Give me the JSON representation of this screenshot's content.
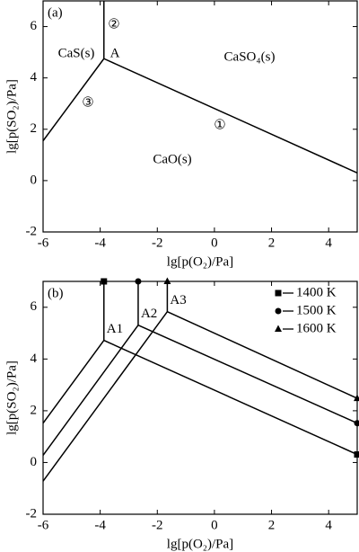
{
  "chart_data": [
    {
      "type": "line",
      "title": "(a)",
      "xlabel": "lg[p(O₂)/Pa]",
      "ylabel": "lg[p(SO₂)/Pa]",
      "xlim": [
        -6,
        5
      ],
      "ylim": [
        -2,
        7
      ],
      "xticks": [
        -6,
        -4,
        -2,
        0,
        2,
        4
      ],
      "yticks": [
        -2,
        0,
        2,
        4,
        6
      ],
      "color": "#000000",
      "annotations": [
        "CaS(s)",
        "A",
        "CaSO₄(s)",
        "CaO(s)"
      ],
      "series": [
        {
          "label": "③",
          "x": [
            -6,
            -3.87
          ],
          "y": [
            1.55,
            4.75
          ]
        },
        {
          "label": "②",
          "x": [
            -3.87,
            -3.87
          ],
          "y": [
            4.75,
            7
          ]
        },
        {
          "label": "①",
          "x": [
            -3.87,
            5
          ],
          "y": [
            4.75,
            0.3
          ]
        }
      ]
    },
    {
      "type": "line",
      "title": "(b)",
      "xlabel": "lg[p(O₂)/Pa]",
      "ylabel": "lg[p(SO₂)/Pa]",
      "xlim": [
        -6,
        5
      ],
      "ylim": [
        -2,
        7
      ],
      "xticks": [
        -6,
        -4,
        -2,
        0,
        2,
        4
      ],
      "yticks": [
        -2,
        0,
        2,
        4,
        6
      ],
      "color": "#000000",
      "legend": "upper right",
      "series": [
        {
          "name": "1400 K",
          "marker": "square",
          "point_label": "A1",
          "x": [
            -6,
            -3.87,
            null,
            -3.87,
            -3.87,
            null,
            -3.87,
            5
          ],
          "y": [
            1.52,
            4.72,
            null,
            4.72,
            7,
            null,
            4.72,
            0.31
          ]
        },
        {
          "name": "1500 K",
          "marker": "circle",
          "point_label": "A2",
          "x": [
            -6,
            -2.67,
            null,
            -2.67,
            -2.67,
            null,
            -2.67,
            5
          ],
          "y": [
            0.28,
            5.31,
            null,
            5.31,
            7,
            null,
            5.31,
            1.52
          ]
        },
        {
          "name": "1600 K",
          "marker": "triangle",
          "point_label": "A3",
          "x": [
            -6,
            -1.65,
            null,
            -1.65,
            -1.65,
            null,
            -1.65,
            5
          ],
          "y": [
            -0.72,
            5.83,
            null,
            5.83,
            7,
            null,
            5.83,
            2.48
          ]
        }
      ]
    }
  ]
}
